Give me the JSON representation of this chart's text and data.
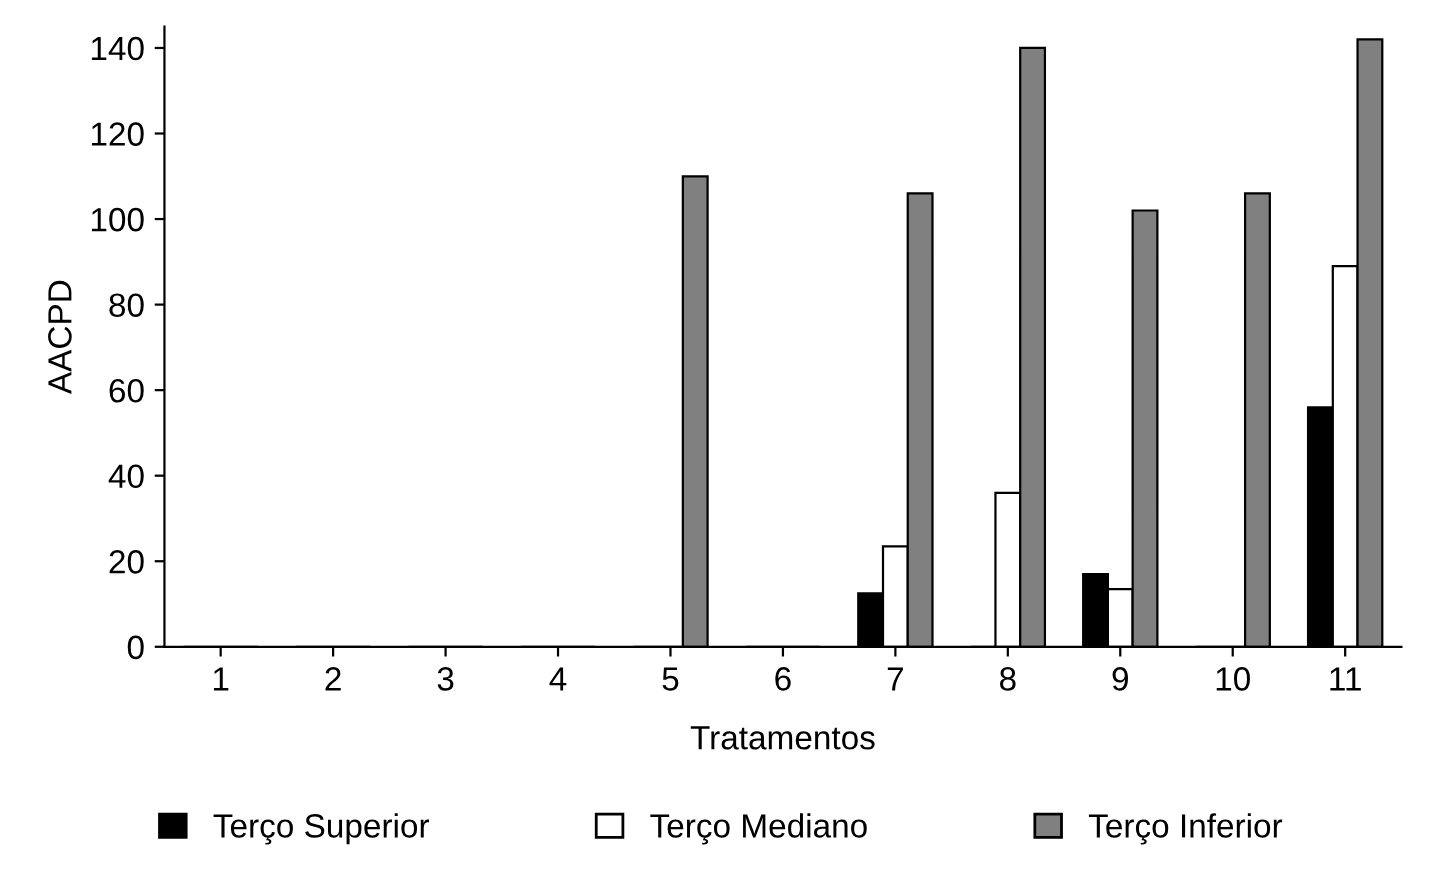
{
  "chart_data": {
    "type": "bar",
    "xlabel": "Tratamentos",
    "ylabel": "AACPD",
    "categories": [
      "1",
      "2",
      "3",
      "4",
      "5",
      "6",
      "7",
      "8",
      "9",
      "10",
      "11"
    ],
    "series": [
      {
        "name": "Terço Superior",
        "color": "#000000",
        "values": [
          0,
          0,
          0,
          0,
          0,
          0,
          12.5,
          0,
          17,
          0,
          56
        ]
      },
      {
        "name": "Terço Mediano",
        "color": "#ffffff",
        "values": [
          0,
          0,
          0,
          0,
          0,
          0,
          23.5,
          36,
          13.5,
          0,
          89
        ]
      },
      {
        "name": "Terço Inferior",
        "color": "#808080",
        "values": [
          0,
          0,
          0,
          0,
          110,
          0,
          106,
          140,
          102,
          106,
          142
        ]
      }
    ],
    "ylim": [
      0,
      145
    ],
    "yticks": [
      0,
      20,
      40,
      60,
      80,
      100,
      120,
      140
    ],
    "grid": false,
    "legend": "bottom"
  }
}
